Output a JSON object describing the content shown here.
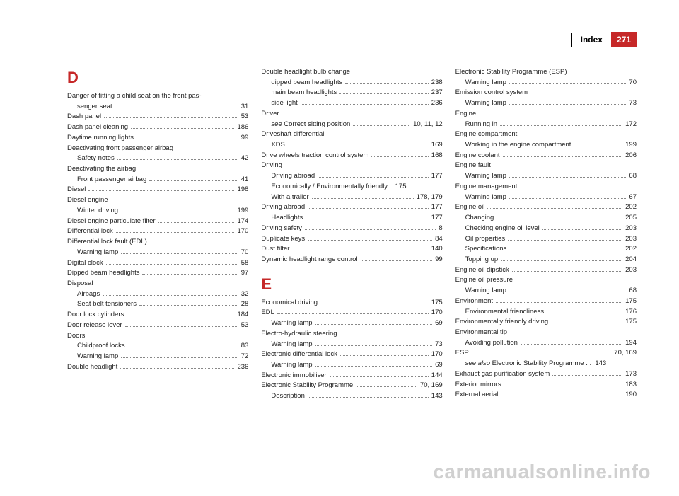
{
  "header": {
    "title": "Index",
    "page_number": "271"
  },
  "watermark": "carmanualsonline.info",
  "colors": {
    "accent": "#c62828",
    "text": "#222222",
    "dots": "#888888",
    "watermark": "#d0d0d0"
  },
  "columns": [
    {
      "letter": "D",
      "entries": [
        {
          "label": "Danger of fitting a child seat on the front pas-",
          "nopage": true
        },
        {
          "label": "senger seat",
          "page": "31",
          "sub": true
        },
        {
          "label": "Dash panel",
          "page": "53"
        },
        {
          "label": "Dash panel cleaning",
          "page": "186"
        },
        {
          "label": "Daytime running lights",
          "page": "99"
        },
        {
          "label": "Deactivating front passenger airbag",
          "nopage": true
        },
        {
          "label": "Safety notes",
          "page": "42",
          "sub": true
        },
        {
          "label": "Deactivating the airbag",
          "nopage": true
        },
        {
          "label": "Front passenger airbag",
          "page": "41",
          "sub": true
        },
        {
          "label": "Diesel",
          "page": "198"
        },
        {
          "label": "Diesel engine",
          "nopage": true
        },
        {
          "label": "Winter driving",
          "page": "199",
          "sub": true
        },
        {
          "label": "Diesel engine particulate filter",
          "page": "174"
        },
        {
          "label": "Differential lock",
          "page": "170"
        },
        {
          "label": "Differential lock fault (EDL)",
          "nopage": true
        },
        {
          "label": "Warning lamp",
          "page": "70",
          "sub": true
        },
        {
          "label": "Digital clock",
          "page": "58"
        },
        {
          "label": "Dipped beam headlights",
          "page": "97"
        },
        {
          "label": "Disposal",
          "nopage": true
        },
        {
          "label": "Airbags",
          "page": "32",
          "sub": true
        },
        {
          "label": "Seat belt tensioners",
          "page": "28",
          "sub": true
        },
        {
          "label": "Door lock cylinders",
          "page": "184"
        },
        {
          "label": "Door release lever",
          "page": "53"
        },
        {
          "label": "Doors",
          "nopage": true
        },
        {
          "label": "Childproof locks",
          "page": "83",
          "sub": true
        },
        {
          "label": "Warning lamp",
          "page": "72",
          "sub": true
        },
        {
          "label": "Double headlight",
          "page": "236"
        }
      ]
    },
    {
      "entries_before": [
        {
          "label": "Double headlight bulb change",
          "nopage": true
        },
        {
          "label": "dipped beam headlights",
          "page": "238",
          "sub": true
        },
        {
          "label": "main beam headlights",
          "page": "237",
          "sub": true
        },
        {
          "label": "side light",
          "page": "236",
          "sub": true
        },
        {
          "label": "Driver",
          "nopage": true
        },
        {
          "label_html": "<span class='see'>see</span> Correct sitting position",
          "page": "10, 11, 12",
          "sub": true
        },
        {
          "label": "Driveshaft differential",
          "nopage": true
        },
        {
          "label": "XDS",
          "page": "169",
          "sub": true
        },
        {
          "label": "Drive wheels traction control system",
          "page": "168"
        },
        {
          "label": "Driving",
          "nopage": true
        },
        {
          "label": "Driving abroad",
          "page": "177",
          "sub": true
        },
        {
          "label": "Economically / Environmentally friendly  .",
          "page": "175",
          "sub": true,
          "nodots": true
        },
        {
          "label": "With a trailer",
          "page": "178, 179",
          "sub": true
        },
        {
          "label": "Driving abroad",
          "page": "177"
        },
        {
          "label": "Headlights",
          "page": "177",
          "sub": true
        },
        {
          "label": "Driving safety",
          "page": "8"
        },
        {
          "label": "Duplicate keys",
          "page": "84"
        },
        {
          "label": "Dust filter",
          "page": "140"
        },
        {
          "label": "Dynamic headlight range control",
          "page": "99"
        }
      ],
      "letter": "E",
      "entries": [
        {
          "label": "Economical driving",
          "page": "175"
        },
        {
          "label": "EDL",
          "page": "170"
        },
        {
          "label": "Warning lamp",
          "page": "69",
          "sub": true
        },
        {
          "label": "Electro-hydraulic steering",
          "nopage": true
        },
        {
          "label": "Warning lamp",
          "page": "73",
          "sub": true
        },
        {
          "label": "Electronic differential lock",
          "page": "170"
        },
        {
          "label": "Warning lamp",
          "page": "69",
          "sub": true
        },
        {
          "label": "Electronic immobiliser",
          "page": "144"
        },
        {
          "label": "Electronic Stability Programme",
          "page": "70, 169"
        },
        {
          "label": "Description",
          "page": "143",
          "sub": true
        }
      ]
    },
    {
      "entries": [
        {
          "label": "Electronic Stability Programme (ESP)",
          "nopage": true
        },
        {
          "label": "Warning lamp",
          "page": "70",
          "sub": true
        },
        {
          "label": "Emission control system",
          "nopage": true
        },
        {
          "label": "Warning lamp",
          "page": "73",
          "sub": true
        },
        {
          "label": "Engine",
          "nopage": true
        },
        {
          "label": "Running in",
          "page": "172",
          "sub": true
        },
        {
          "label": "Engine compartment",
          "nopage": true
        },
        {
          "label": "Working in the engine compartment",
          "page": "199",
          "sub": true
        },
        {
          "label": "Engine coolant",
          "page": "206"
        },
        {
          "label": "Engine fault",
          "nopage": true
        },
        {
          "label": "Warning lamp",
          "page": "68",
          "sub": true
        },
        {
          "label": "Engine management",
          "nopage": true
        },
        {
          "label": "Warning lamp",
          "page": "67",
          "sub": true
        },
        {
          "label": "Engine oil",
          "page": "202"
        },
        {
          "label": "Changing",
          "page": "205",
          "sub": true
        },
        {
          "label": "Checking engine oil level",
          "page": "203",
          "sub": true
        },
        {
          "label": "Oil properties",
          "page": "203",
          "sub": true
        },
        {
          "label": "Specifications",
          "page": "202",
          "sub": true
        },
        {
          "label": "Topping up",
          "page": "204",
          "sub": true
        },
        {
          "label": "Engine oil dipstick",
          "page": "203"
        },
        {
          "label": "Engine oil pressure",
          "nopage": true
        },
        {
          "label": "Warning lamp",
          "page": "68",
          "sub": true
        },
        {
          "label": "Environment",
          "page": "175"
        },
        {
          "label": "Environmental friendliness",
          "page": "176",
          "sub": true
        },
        {
          "label": "Environmentally friendly driving",
          "page": "175"
        },
        {
          "label": "Environmental tip",
          "nopage": true
        },
        {
          "label": "Avoiding pollution",
          "page": "194",
          "sub": true
        },
        {
          "label": "ESP",
          "page": "70, 169"
        },
        {
          "label_html": "<span class='see'>see also</span> Electronic Stability Programme . .",
          "page": "143",
          "sub": true,
          "nodots": true
        },
        {
          "label": "Exhaust gas purification system",
          "page": "173"
        },
        {
          "label": "Exterior mirrors",
          "page": "183"
        },
        {
          "label": "External aerial",
          "page": "190"
        }
      ]
    }
  ]
}
